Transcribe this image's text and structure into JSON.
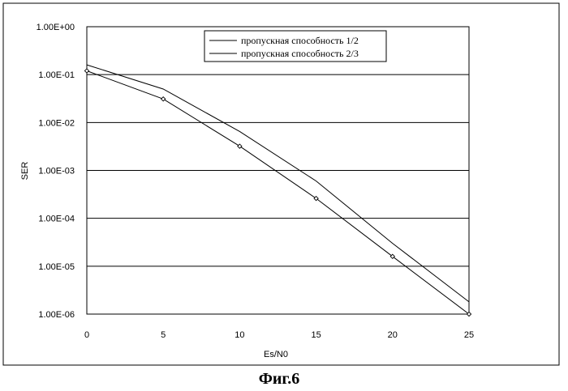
{
  "chart_data": {
    "type": "line",
    "xlabel": "Es/N0",
    "ylabel": "SER",
    "y_scale": "log",
    "xlim": [
      0,
      25
    ],
    "ylim": [
      1e-06,
      1
    ],
    "x_ticks": [
      {
        "value": 0,
        "label": "0"
      },
      {
        "value": 5,
        "label": "5"
      },
      {
        "value": 10,
        "label": "10"
      },
      {
        "value": 15,
        "label": "15"
      },
      {
        "value": 20,
        "label": "20"
      },
      {
        "value": 25,
        "label": "25"
      }
    ],
    "y_ticks": [
      {
        "value": 1,
        "label": "1.00E+00"
      },
      {
        "value": 0.1,
        "label": "1.00E-01"
      },
      {
        "value": 0.01,
        "label": "1.00E-02"
      },
      {
        "value": 0.001,
        "label": "1.00E-03"
      },
      {
        "value": 0.0001,
        "label": "1.00E-04"
      },
      {
        "value": 1e-05,
        "label": "1.00E-05"
      },
      {
        "value": 1e-06,
        "label": "1.00E-06"
      }
    ],
    "grid": "horizontal",
    "legend_position": "top-center",
    "series": [
      {
        "name": "пропускная способность 1/2",
        "markers": false,
        "x": [
          0,
          5,
          10,
          15,
          20,
          25
        ],
        "y": [
          0.16,
          0.05,
          0.0065,
          0.0006,
          3e-05,
          1.8e-06
        ]
      },
      {
        "name": "пропускная способность 2/3",
        "markers": true,
        "x": [
          0,
          5,
          10,
          15,
          20,
          25
        ],
        "y": [
          0.12,
          0.031,
          0.0032,
          0.00026,
          1.6e-05,
          1e-06
        ]
      }
    ]
  },
  "caption": "Фиг.6"
}
